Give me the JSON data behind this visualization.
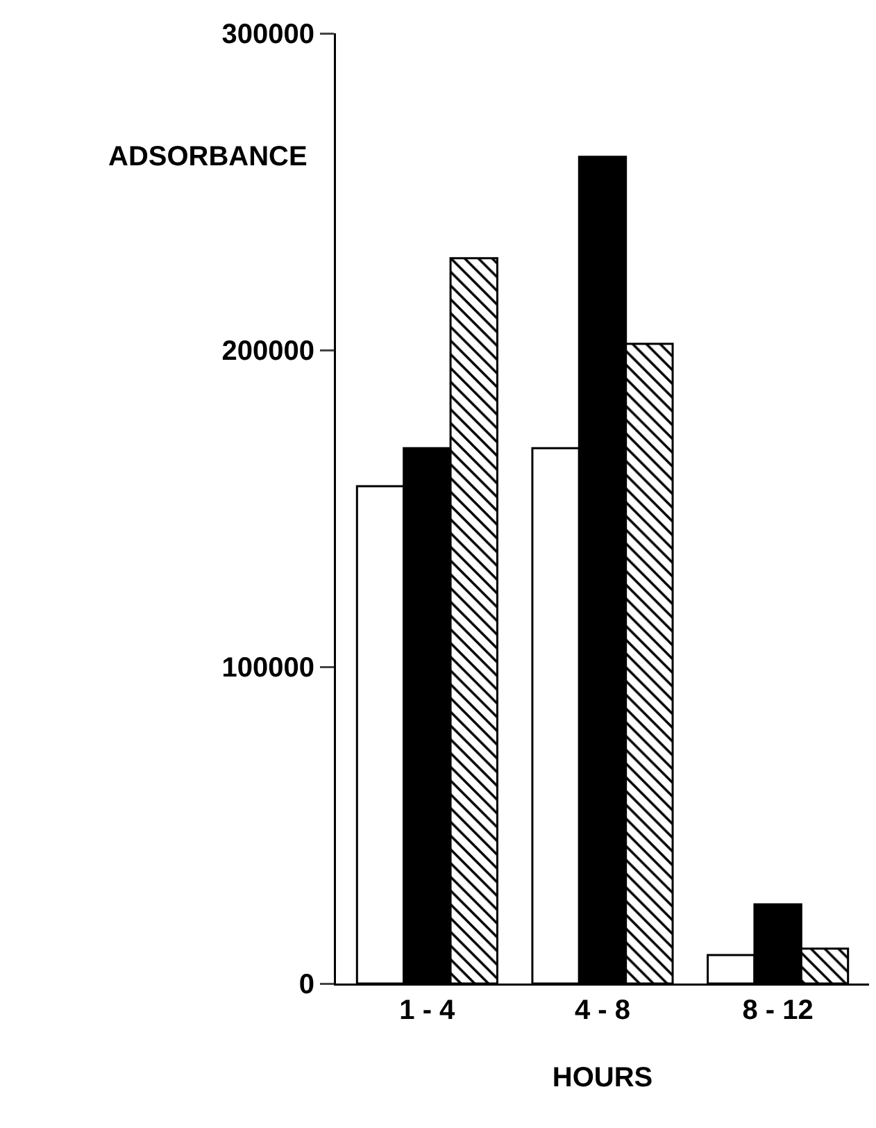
{
  "chart_data": {
    "type": "bar",
    "categories": [
      "1 - 4",
      "4 - 8",
      "8 - 12"
    ],
    "series": [
      {
        "color": "#ffffff",
        "values": [
          157000,
          169000,
          9000
        ]
      },
      {
        "color": "#000000",
        "values": [
          169000,
          261000,
          25000
        ]
      },
      {
        "color": "#000000",
        "values": [
          229000,
          202000,
          11000
        ]
      }
    ],
    "xlabel": "HOURS",
    "ylabel": "ADSORBANCE",
    "ylim": [
      0,
      300000
    ],
    "yticks": [
      0,
      100000,
      200000,
      300000
    ],
    "grid": false
  }
}
